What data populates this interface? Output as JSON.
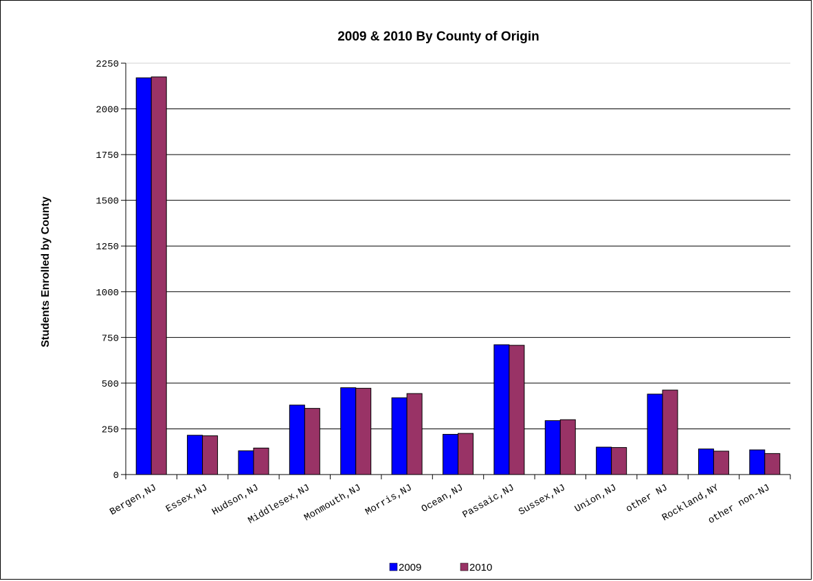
{
  "chart_data": {
    "type": "bar",
    "title": "2009 & 2010 By County of Origin",
    "ylabel": "Students Enrolled by County",
    "xlabel": "",
    "ylim": [
      0,
      2250
    ],
    "yticks": [
      0,
      250,
      500,
      750,
      1000,
      1250,
      1500,
      1750,
      2000,
      2250
    ],
    "grid": true,
    "legend_position": "bottom",
    "categories": [
      "Bergen,NJ",
      "Essex,NJ",
      "Hudson,NJ",
      "Middlesex,NJ",
      "Monmouth,NJ",
      "Morris,NJ",
      "Ocean,NJ",
      "Passaic,NJ",
      "Sussex,NJ",
      "Union,NJ",
      "other NJ",
      "Rockland,NY",
      "other non-NJ"
    ],
    "series": [
      {
        "name": "2009",
        "color": "#0000ff",
        "values": [
          2170,
          215,
          130,
          380,
          475,
          420,
          220,
          710,
          295,
          150,
          440,
          140,
          135
        ]
      },
      {
        "name": "2010",
        "color": "#993366",
        "values": [
          2175,
          212,
          145,
          362,
          472,
          443,
          225,
          707,
          300,
          148,
          462,
          128,
          115
        ]
      }
    ]
  }
}
